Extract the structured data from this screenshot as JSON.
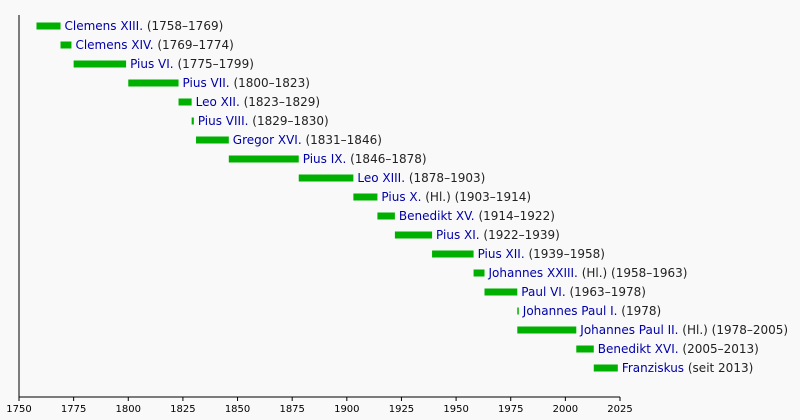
{
  "colors": {
    "background": "#f9f9f9",
    "bar": "#00b000",
    "link": "#0000a8",
    "axis": "#000000",
    "text": "#222222"
  },
  "chart_data": {
    "type": "bar",
    "orientation": "horizontal-timeline",
    "xlim": [
      1750,
      2025
    ],
    "xticks": [
      1750,
      1775,
      1800,
      1825,
      1850,
      1875,
      1900,
      1925,
      1950,
      1975,
      2000,
      2025
    ],
    "grid": false,
    "series": [
      {
        "name": "Clemens XIII.",
        "suffix": " (1758–1769)",
        "start": 1758,
        "end": 1769
      },
      {
        "name": "Clemens XIV.",
        "suffix": " (1769–1774)",
        "start": 1769,
        "end": 1774
      },
      {
        "name": "Pius VI.",
        "suffix": " (1775–1799)",
        "start": 1775,
        "end": 1799
      },
      {
        "name": "Pius VII.",
        "suffix": " (1800–1823)",
        "start": 1800,
        "end": 1823
      },
      {
        "name": "Leo XII.",
        "suffix": " (1823–1829)",
        "start": 1823,
        "end": 1829
      },
      {
        "name": "Pius VIII.",
        "suffix": " (1829–1830)",
        "start": 1829,
        "end": 1830
      },
      {
        "name": "Gregor XVI.",
        "suffix": " (1831–1846)",
        "start": 1831,
        "end": 1846
      },
      {
        "name": "Pius IX.",
        "suffix": " (1846–1878)",
        "start": 1846,
        "end": 1878
      },
      {
        "name": "Leo XIII.",
        "suffix": " (1878–1903)",
        "start": 1878,
        "end": 1903
      },
      {
        "name": "Pius X.",
        "suffix": " (Hl.) (1903–1914)",
        "start": 1903,
        "end": 1914
      },
      {
        "name": "Benedikt XV.",
        "suffix": " (1914–1922)",
        "start": 1914,
        "end": 1922
      },
      {
        "name": "Pius XI.",
        "suffix": " (1922–1939)",
        "start": 1922,
        "end": 1939
      },
      {
        "name": "Pius XII.",
        "suffix": " (1939–1958)",
        "start": 1939,
        "end": 1958
      },
      {
        "name": "Johannes XXIII.",
        "suffix": " (Hl.) (1958–1963)",
        "start": 1958,
        "end": 1963
      },
      {
        "name": "Paul VI.",
        "suffix": " (1963–1978)",
        "start": 1963,
        "end": 1978
      },
      {
        "name": "Johannes Paul I.",
        "suffix": " (1978)",
        "start": 1978,
        "end": 1978.1
      },
      {
        "name": "Johannes Paul II.",
        "suffix": " (Hl.) (1978–2005)",
        "start": 1978,
        "end": 2005
      },
      {
        "name": "Benedikt XVI.",
        "suffix": " (2005–2013)",
        "start": 2005,
        "end": 2013
      },
      {
        "name": "Franziskus",
        "suffix": " (seit 2013)",
        "start": 2013,
        "end": 2024
      }
    ]
  }
}
